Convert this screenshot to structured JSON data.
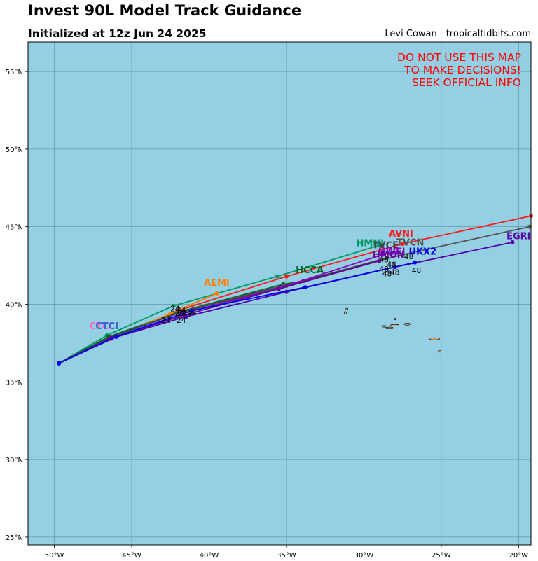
{
  "header": {
    "title": "Invest 90L Model Track Guidance",
    "subtitle": "Initialized at 12z Jun 24 2025",
    "credit": "Levi Cowan - tropicaltidbits.com"
  },
  "warning": [
    "DO NOT USE THIS MAP",
    "TO MAKE DECISIONS!",
    "SEEK OFFICIAL INFO"
  ],
  "colors": {
    "ocean": "#94cfe4",
    "land": "#c8a57a",
    "grid": "#4f7f8a",
    "warning": "#ff0000"
  },
  "map": {
    "lon_range": [
      -51.7,
      -19.2
    ],
    "lat_range": [
      24.5,
      56.9
    ],
    "lon_ticks": [
      {
        "value": -50,
        "label": "50°W"
      },
      {
        "value": -45,
        "label": "45°W"
      },
      {
        "value": -40,
        "label": "40°W"
      },
      {
        "value": -35,
        "label": "35°W"
      },
      {
        "value": -30,
        "label": "30°W"
      },
      {
        "value": -25,
        "label": "25°W"
      },
      {
        "value": -20,
        "label": "20°W"
      }
    ],
    "lat_ticks": [
      {
        "value": 25,
        "label": "25°N"
      },
      {
        "value": 30,
        "label": "30°N"
      },
      {
        "value": 35,
        "label": "35°N"
      },
      {
        "value": 40,
        "label": "40°N"
      },
      {
        "value": 45,
        "label": "45°N"
      },
      {
        "value": 50,
        "label": "50°N"
      },
      {
        "value": 55,
        "label": "55°N"
      }
    ],
    "grid": true,
    "islands": [
      {
        "name": "Flores",
        "lon": -31.2,
        "lat": 39.45,
        "rx": 0.07,
        "ry": 0.08
      },
      {
        "name": "Corvo",
        "lon": -31.1,
        "lat": 39.7,
        "rx": 0.04,
        "ry": 0.04
      },
      {
        "name": "Faial",
        "lon": -28.7,
        "lat": 38.58,
        "rx": 0.12,
        "ry": 0.05
      },
      {
        "name": "Pico",
        "lon": -28.35,
        "lat": 38.47,
        "rx": 0.25,
        "ry": 0.06
      },
      {
        "name": "Sao Jorge",
        "lon": -28.0,
        "lat": 38.65,
        "rx": 0.28,
        "ry": 0.04
      },
      {
        "name": "Graciosa",
        "lon": -28.0,
        "lat": 39.05,
        "rx": 0.06,
        "ry": 0.04
      },
      {
        "name": "Terceira",
        "lon": -27.2,
        "lat": 38.72,
        "rx": 0.2,
        "ry": 0.07
      },
      {
        "name": "Sao Miguel",
        "lon": -25.45,
        "lat": 37.78,
        "rx": 0.35,
        "ry": 0.07
      },
      {
        "name": "Santa Maria",
        "lon": -25.1,
        "lat": 36.97,
        "rx": 0.09,
        "ry": 0.05
      }
    ]
  },
  "chart_data": {
    "type": "map-tracks",
    "origin": {
      "lon": -49.7,
      "lat": 36.2
    },
    "series": [
      {
        "name": "AVNI",
        "color": "#ff1a1a",
        "label_at": {
          "lon": -27.6,
          "lat": 44.35
        },
        "points": [
          {
            "lon": -49.7,
            "lat": 36.2
          },
          {
            "lon": -46.3,
            "lat": 37.8
          },
          {
            "lon": -42.0,
            "lat": 39.6
          },
          {
            "lon": -35.0,
            "lat": 41.8
          },
          {
            "lon": -27.5,
            "lat": 43.9
          },
          {
            "lon": -19.2,
            "lat": 45.7
          }
        ]
      },
      {
        "name": "HMNI",
        "color": "#009966",
        "label_at": {
          "lon": -29.6,
          "lat": 43.75
        },
        "points": [
          {
            "lon": -49.7,
            "lat": 36.2
          },
          {
            "lon": -46.6,
            "lat": 38.0
          },
          {
            "lon": -42.3,
            "lat": 39.9
          },
          {
            "lon": -35.6,
            "lat": 41.8
          },
          {
            "lon": -29.0,
            "lat": 43.8
          }
        ]
      },
      {
        "name": "HCCA",
        "color": "#006622",
        "label_at": {
          "lon": -33.5,
          "lat": 42.0
        },
        "points": [
          {
            "lon": -49.7,
            "lat": 36.2
          },
          {
            "lon": -46.5,
            "lat": 37.9
          },
          {
            "lon": -42.0,
            "lat": 39.5
          },
          {
            "lon": -35.2,
            "lat": 41.3
          },
          {
            "lon": -33.9,
            "lat": 41.5
          }
        ]
      },
      {
        "name": "AEMI",
        "color": "#ff8000",
        "label_at": {
          "lon": -39.5,
          "lat": 41.2
        },
        "points": [
          {
            "lon": -49.7,
            "lat": 36.2
          },
          {
            "lon": -46.4,
            "lat": 37.75
          },
          {
            "lon": -42.5,
            "lat": 39.4
          },
          {
            "lon": -39.5,
            "lat": 40.7
          }
        ]
      },
      {
        "name": "CTCI",
        "color": "#ff66cc",
        "label_at": {
          "lon": -47.0,
          "lat": 38.4
        },
        "points": [
          {
            "lon": -49.7,
            "lat": 36.2
          },
          {
            "lon": -46.3,
            "lat": 37.8
          },
          {
            "lon": -42.0,
            "lat": 39.3
          }
        ]
      },
      {
        "name": "CTCI",
        "color": "#3366cc",
        "label_at": {
          "lon": -46.6,
          "lat": 38.4
        },
        "points": [
          {
            "lon": -49.7,
            "lat": 36.2
          },
          {
            "lon": -46.3,
            "lat": 37.85
          },
          {
            "lon": -41.8,
            "lat": 39.5
          }
        ]
      },
      {
        "name": "TVCN",
        "color": "#555555",
        "label_at": {
          "lon": -27.0,
          "lat": 43.8
        },
        "points": [
          {
            "lon": -49.7,
            "lat": 36.2
          },
          {
            "lon": -46.3,
            "lat": 37.9
          },
          {
            "lon": -41.9,
            "lat": 39.5
          },
          {
            "lon": -35.2,
            "lat": 41.2
          },
          {
            "lon": -27.5,
            "lat": 43.2
          },
          {
            "lon": -19.3,
            "lat": 45.0
          }
        ]
      },
      {
        "name": "TVCE",
        "color": "#444444",
        "label_at": {
          "lon": -28.6,
          "lat": 43.6
        },
        "points": [
          {
            "lon": -49.7,
            "lat": 36.2
          },
          {
            "lon": -46.3,
            "lat": 37.9
          },
          {
            "lon": -41.8,
            "lat": 39.5
          },
          {
            "lon": -35.0,
            "lat": 41.2
          },
          {
            "lon": -28.5,
            "lat": 43.0
          }
        ]
      },
      {
        "name": "HWFI",
        "color": "#8800cc",
        "label_at": {
          "lon": -28.2,
          "lat": 43.2
        },
        "points": [
          {
            "lon": -49.7,
            "lat": 36.2
          },
          {
            "lon": -46.3,
            "lat": 37.8
          },
          {
            "lon": -41.7,
            "lat": 39.4
          },
          {
            "lon": -35.3,
            "lat": 41.1
          },
          {
            "lon": -28.8,
            "lat": 43.2
          }
        ]
      },
      {
        "name": "HMON",
        "color": "#660099",
        "label_at": {
          "lon": -28.4,
          "lat": 43.0
        },
        "points": [
          {
            "lon": -49.7,
            "lat": 36.2
          },
          {
            "lon": -46.4,
            "lat": 37.8
          },
          {
            "lon": -41.6,
            "lat": 39.3
          },
          {
            "lon": -35.5,
            "lat": 41.0
          },
          {
            "lon": -29.0,
            "lat": 42.8
          }
        ]
      },
      {
        "name": "EGRI",
        "color": "#5500aa",
        "label_at": {
          "lon": -20.0,
          "lat": 44.2
        },
        "points": [
          {
            "lon": -49.7,
            "lat": 36.2
          },
          {
            "lon": -46.3,
            "lat": 37.8
          },
          {
            "lon": -41.5,
            "lat": 39.2
          },
          {
            "lon": -35.0,
            "lat": 40.8
          },
          {
            "lon": -28.0,
            "lat": 42.4
          },
          {
            "lon": -20.4,
            "lat": 44.0
          }
        ]
      },
      {
        "name": "UKX2",
        "color": "#0000ee",
        "label_at": {
          "lon": -26.2,
          "lat": 43.2
        },
        "points": [
          {
            "lon": -49.7,
            "lat": 36.2
          },
          {
            "lon": -46.0,
            "lat": 37.9
          },
          {
            "lon": -41.1,
            "lat": 39.6
          },
          {
            "lon": -33.8,
            "lat": 41.1
          },
          {
            "lon": -26.7,
            "lat": 42.7
          }
        ]
      }
    ],
    "hour_labels": [
      {
        "text": "24",
        "lon": -42.2,
        "lat": 39.55
      },
      {
        "text": "24",
        "lon": -41.8,
        "lat": 39.45
      },
      {
        "text": "24",
        "lon": -41.9,
        "lat": 39.25
      },
      {
        "text": "24",
        "lon": -41.7,
        "lat": 39.25
      },
      {
        "text": "24",
        "lon": -41.4,
        "lat": 39.3
      },
      {
        "text": "24",
        "lon": -41.1,
        "lat": 39.3
      },
      {
        "text": "24",
        "lon": -42.8,
        "lat": 38.8
      },
      {
        "text": "24",
        "lon": -41.8,
        "lat": 38.8
      },
      {
        "text": "48",
        "lon": -28.7,
        "lat": 42.7
      },
      {
        "text": "48",
        "lon": -27.1,
        "lat": 42.9
      },
      {
        "text": "48",
        "lon": -28.2,
        "lat": 42.4
      },
      {
        "text": "48",
        "lon": -28.7,
        "lat": 42.1
      },
      {
        "text": "48",
        "lon": -28.0,
        "lat": 41.9
      },
      {
        "text": "48",
        "lon": -28.5,
        "lat": 41.8
      },
      {
        "text": "48",
        "lon": -26.6,
        "lat": 42.0
      }
    ]
  }
}
